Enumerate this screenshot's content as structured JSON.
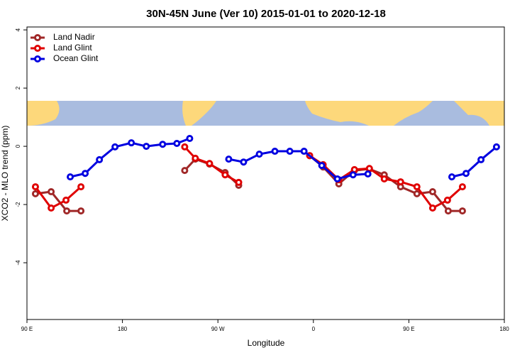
{
  "chart_data": {
    "type": "line",
    "title": "30N-45N June (Ver 10)   2015-01-01 to 2020-12-18",
    "xlabel": "Longitude",
    "ylabel": "XCO2 - MLO trend (ppm)",
    "xlim": [
      90,
      540
    ],
    "ylim": [
      -5.95,
      4.1
    ],
    "xticks": [
      {
        "value": 90,
        "label": "90 E"
      },
      180,
      {
        "value": 270,
        "label": "90 W"
      },
      {
        "value": 360,
        "label": "0"
      },
      {
        "value": 450,
        "label": "90 E"
      },
      {
        "value": 540,
        "label": "180"
      }
    ],
    "yticks": [
      4,
      2,
      0,
      -2,
      -4
    ],
    "legend": "top-left",
    "series": [
      {
        "name": "Land Nadir",
        "color": "#a02828",
        "x": [
          98,
          112.8,
          127.5,
          140.9,
          null,
          238.7,
          248.7,
          262.1,
          276.8,
          289.6,
          null,
          356.5,
          369.2,
          384,
          398.7,
          412.8,
          426.8,
          442.2,
          457.6,
          472.4,
          487.1,
          500.5
        ],
        "values": [
          -1.63,
          -1.56,
          -2.22,
          -2.22,
          null,
          -0.83,
          -0.44,
          -0.61,
          -0.9,
          -1.34,
          null,
          -0.32,
          -0.71,
          -1.29,
          -0.83,
          -0.78,
          -0.98,
          -1.39,
          -1.63,
          -1.56,
          -2.22,
          -2.22
        ]
      },
      {
        "name": "Land Glint",
        "color": "#e00000",
        "x": [
          98,
          112.8,
          126.8,
          140.9,
          null,
          238.7,
          248.7,
          262.1,
          276.8,
          289.6,
          null,
          356.5,
          369.2,
          384,
          398.7,
          412.8,
          426.8,
          442.2,
          457.6,
          472.4,
          486.4,
          500.5
        ],
        "values": [
          -1.39,
          -2.12,
          -1.85,
          -1.39,
          null,
          -0.02,
          -0.41,
          -0.59,
          -0.98,
          -1.24,
          null,
          -0.32,
          -0.63,
          -1.15,
          -0.8,
          -0.76,
          -1.12,
          -1.22,
          -1.39,
          -2.12,
          -1.85,
          -1.39
        ]
      },
      {
        "name": "Ocean Glint",
        "color": "#0000e0",
        "x": [
          130.8,
          144.9,
          158.3,
          173,
          188.4,
          202.5,
          217.9,
          231.3,
          243.4,
          null,
          280.2,
          294.2,
          309,
          323.7,
          337.8,
          351.2,
          367.9,
          382.6,
          397.4,
          411.4,
          null,
          490.5,
          503.9,
          518,
          532.6
        ],
        "values": [
          -1.05,
          -0.93,
          -0.46,
          -0.02,
          0.12,
          0,
          0.07,
          0.1,
          0.27,
          null,
          -0.44,
          -0.54,
          -0.27,
          -0.17,
          -0.17,
          -0.17,
          -0.66,
          -1.12,
          -0.98,
          -0.95,
          null,
          -1.05,
          -0.93,
          -0.46,
          -0.02
        ]
      }
    ]
  }
}
